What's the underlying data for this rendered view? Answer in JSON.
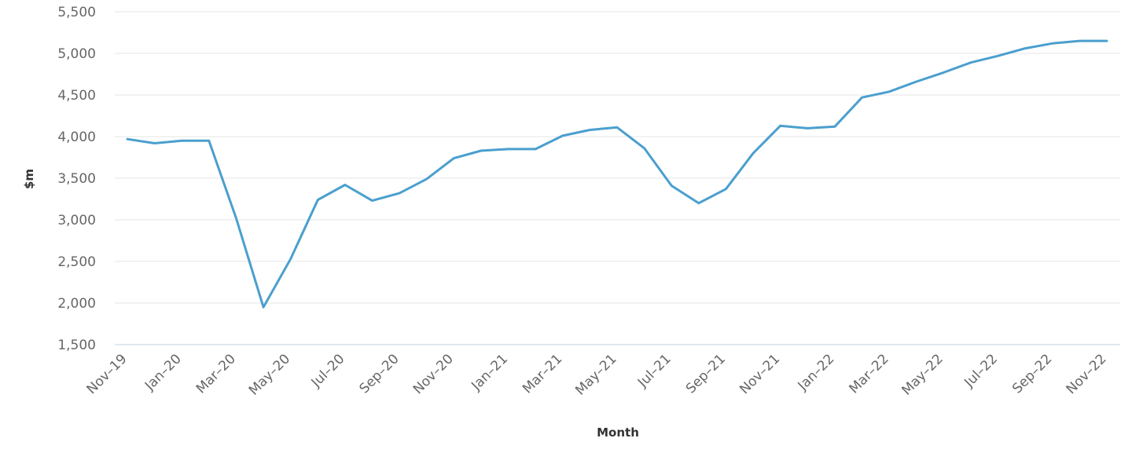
{
  "chart_data": {
    "type": "line",
    "title": "",
    "xlabel": "Month",
    "ylabel": "$m",
    "ylim": [
      1500,
      5500
    ],
    "yticks": [
      1500,
      2000,
      2500,
      3000,
      3500,
      4000,
      4500,
      5000,
      5500
    ],
    "ytick_labels": [
      "1,500",
      "2,000",
      "2,500",
      "3,000",
      "3,500",
      "4,000",
      "4,500",
      "5,000",
      "5,500"
    ],
    "grid": true,
    "legend": "none",
    "line_color": "#4a9fce",
    "categories": [
      "Nov-19",
      "Dec-19",
      "Jan-20",
      "Feb-20",
      "Mar-20",
      "Apr-20",
      "May-20",
      "Jun-20",
      "Jul-20",
      "Aug-20",
      "Sep-20",
      "Oct-20",
      "Nov-20",
      "Dec-20",
      "Jan-21",
      "Feb-21",
      "Mar-21",
      "Apr-21",
      "May-21",
      "Jun-21",
      "Jul-21",
      "Aug-21",
      "Sep-21",
      "Oct-21",
      "Nov-21",
      "Dec-21",
      "Jan-22",
      "Feb-22",
      "Mar-22",
      "Apr-22",
      "May-22",
      "Jun-22",
      "Jul-22",
      "Aug-22",
      "Sep-22",
      "Oct-22",
      "Nov-22"
    ],
    "xtick_labels": [
      "Nov-19",
      "Jan-20",
      "Mar-20",
      "May-20",
      "Jul-20",
      "Sep-20",
      "Nov-20",
      "Jan-21",
      "Mar-21",
      "May-21",
      "Jul-21",
      "Sep-21",
      "Nov-21",
      "Jan-22",
      "Mar-22",
      "May-22",
      "Jul-22",
      "Sep-22",
      "Nov-22"
    ],
    "series": [
      {
        "values": [
          3970,
          3920,
          3950,
          3950,
          3020,
          1950,
          2530,
          3240,
          3420,
          3230,
          3320,
          3490,
          3740,
          3830,
          3850,
          3850,
          4010,
          4080,
          4110,
          3860,
          3410,
          3200,
          3370,
          3800,
          4130,
          4100,
          4120,
          4470,
          4540,
          4660,
          4770,
          4890,
          4970,
          5060,
          5120,
          5150,
          5150
        ]
      }
    ]
  }
}
